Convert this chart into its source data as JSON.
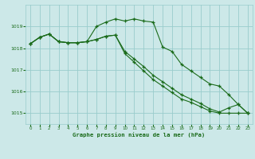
{
  "title": "Graphe pression niveau de la mer (hPa)",
  "background_color": "#cce8e8",
  "plot_bg_color": "#cce8e8",
  "grid_color": "#99cccc",
  "line_color": "#1a6b1a",
  "xlim": [
    -0.5,
    23.5
  ],
  "ylim": [
    1014.5,
    1020.0
  ],
  "yticks": [
    1015,
    1016,
    1017,
    1018,
    1019
  ],
  "xticks": [
    0,
    1,
    2,
    3,
    4,
    5,
    6,
    7,
    8,
    9,
    10,
    11,
    12,
    13,
    14,
    15,
    16,
    17,
    18,
    19,
    20,
    21,
    22,
    23
  ],
  "series1": [
    1018.2,
    1018.5,
    1018.65,
    1018.3,
    1018.25,
    1018.25,
    1018.3,
    1019.0,
    1019.2,
    1019.35,
    1019.25,
    1019.35,
    1019.25,
    1019.2,
    1018.05,
    1017.85,
    1017.25,
    1016.95,
    1016.65,
    1016.35,
    1016.25,
    1015.85,
    1015.4,
    1015.0
  ],
  "series2": [
    1018.2,
    1018.5,
    1018.65,
    1018.3,
    1018.25,
    1018.25,
    1018.3,
    1018.4,
    1018.55,
    1018.6,
    1017.85,
    1017.5,
    1017.15,
    1016.75,
    1016.45,
    1016.15,
    1015.85,
    1015.65,
    1015.45,
    1015.2,
    1015.05,
    1015.25,
    1015.4,
    1015.0
  ],
  "series3": [
    1018.2,
    1018.5,
    1018.65,
    1018.3,
    1018.25,
    1018.25,
    1018.3,
    1018.4,
    1018.55,
    1018.6,
    1017.75,
    1017.35,
    1016.95,
    1016.55,
    1016.25,
    1015.95,
    1015.65,
    1015.5,
    1015.3,
    1015.1,
    1015.0,
    1015.0,
    1015.0,
    1015.0
  ]
}
